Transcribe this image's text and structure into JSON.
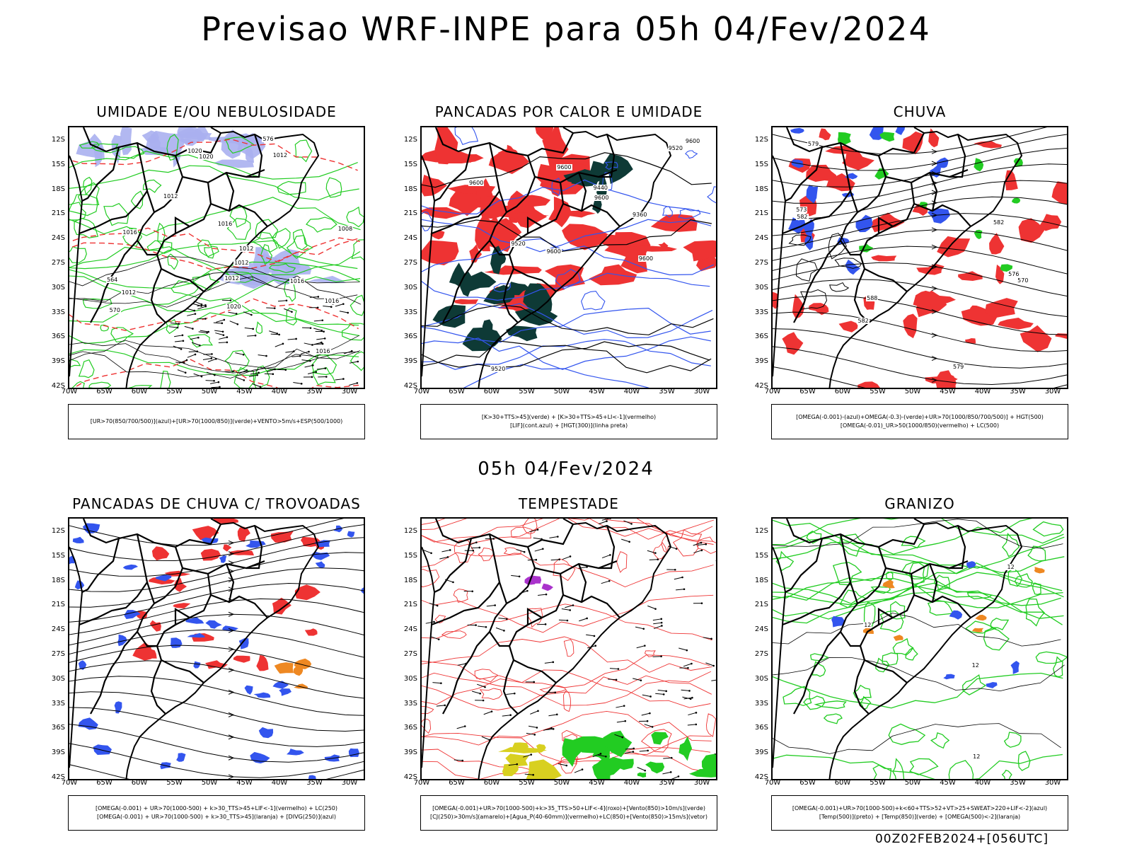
{
  "main_title": "Previsao WRF-INPE  para 05h 04/Fev/2024",
  "mid_date": "05h 04/Fev/2024",
  "footer_stamp": "00Z02FEB2024+[056UTC]",
  "axes": {
    "lat_ticks": [
      "12S",
      "15S",
      "18S",
      "21S",
      "24S",
      "27S",
      "30S",
      "33S",
      "36S",
      "39S",
      "42S"
    ],
    "lon_ticks": [
      "70W",
      "65W",
      "60W",
      "55W",
      "50W",
      "45W",
      "40W",
      "35W",
      "30W"
    ]
  },
  "colors": {
    "green": "#22cc22",
    "blue": "#3355ee",
    "red": "#ee3333",
    "lavender": "#aab0f0",
    "darkteal": "#0e3a36",
    "yellow": "#d8d020",
    "orange": "#ee8822",
    "purple": "#aa33cc"
  },
  "panels": [
    {
      "title": "UMIDADE E/OU NEBULOSIDADE",
      "legend": [
        "[UR>70(850/700/500)](azul)+[UR>70(1000/850)](verde)+VENTO>5m/s+ESP(500/1000)"
      ],
      "contour_labels": [
        "1012",
        "1012",
        "1016",
        "1016",
        "1012",
        "1008",
        "1012",
        "1016",
        "1016",
        "1020",
        "1020",
        "1012",
        "1016",
        "576",
        "570",
        "564",
        "1012",
        "1020"
      ]
    },
    {
      "title": "PANCADAS POR CALOR E UMIDADE",
      "legend": [
        "[K>30+TTS>45](verde) + [K>30+TTS>45+LI<-1](vermelho)",
        "[LIF](cont.azul) + [HGT(300)](linha preta)"
      ],
      "contour_labels": [
        "9600",
        "9600",
        "9600",
        "9600",
        "9600",
        "9600",
        "9520",
        "9520",
        "9440",
        "9360",
        "9520"
      ]
    },
    {
      "title": "CHUVA",
      "legend": [
        "[OMEGA(-0.001)-(azul)+OMEGA(-0.3)-(verde)+UR>70(1000/850/700/500)] + HGT(500)",
        "[OMEGA(-0.01)_UR>50(1000/850)(vermelho) + LC(500)"
      ],
      "contour_labels": [
        "582",
        "582",
        "588",
        "582",
        "579",
        "576",
        "573",
        "570",
        "579"
      ]
    },
    {
      "title": "PANCADAS DE CHUVA C/ TROVOADAS",
      "legend": [
        "[OMEGA(-0.001) + UR>70(1000-500) + k>30_TTS>45+LIF<-1](vermelho) + LC(250)",
        "[OMEGA(-0.001) + UR>70(1000-500) + k>30_TTS>45](laranja) + [DIVG(250)](azul)"
      ],
      "contour_labels": []
    },
    {
      "title": "TEMPESTADE",
      "legend": [
        "[OMEGA(-0.001)+UR>70(1000-500)+k>35_TTS>50+LIF<-4](roxo)+[Vento(850)>10m/s](verde)",
        "[CJ(250)>30m/s](amarelo)+[Agua_P(40-60mm)](vermelho)+LC(850)+[Vento(850)>15m/s](vetor)"
      ],
      "contour_labels": []
    },
    {
      "title": "GRANIZO",
      "legend": [
        "[OMEGA(-0.001)+UR>70(1000-500)+k<60+TTS>52+VT>25+SWEAT>220+LIF<-2](azul)",
        "[Temp(500)](preto) + [Temp(850)](verde) + [OMEGA(500)<-2](laranja)"
      ],
      "contour_labels": [
        "12",
        "12",
        "12",
        "12"
      ]
    }
  ]
}
